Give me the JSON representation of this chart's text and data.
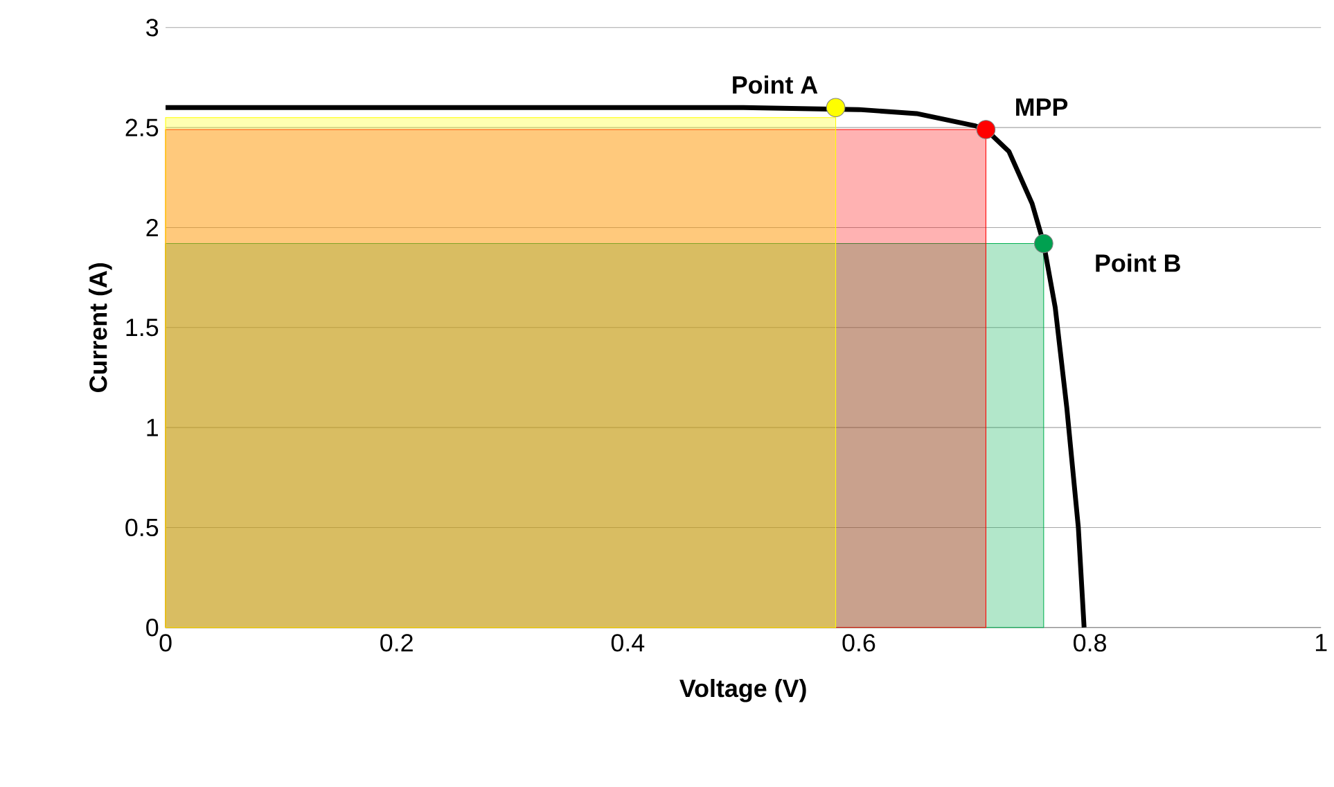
{
  "chart_data": {
    "type": "line",
    "xlabel": "Voltage (V)",
    "ylabel": "Current (A)",
    "xlim": [
      0,
      1
    ],
    "ylim": [
      0,
      3
    ],
    "xticks": [
      0,
      0.2,
      0.4,
      0.6,
      0.8,
      1
    ],
    "yticks": [
      0,
      0.5,
      1,
      1.5,
      2,
      2.5,
      3
    ],
    "grid": "y",
    "series": [
      {
        "type": "area",
        "color": "#00b050",
        "x": [
          0,
          0.76
        ],
        "values": [
          1.92,
          1.92
        ]
      },
      {
        "type": "area",
        "color": "#ff0000",
        "x": [
          0,
          0.71
        ],
        "values": [
          2.49,
          2.49
        ]
      },
      {
        "type": "area",
        "color": "#ffff00",
        "x": [
          0,
          0.58
        ],
        "values": [
          2.55,
          2.55
        ]
      },
      {
        "color": "#000000",
        "x": [
          0,
          0.1,
          0.2,
          0.3,
          0.4,
          0.5,
          0.6,
          0.65,
          0.7,
          0.71,
          0.73,
          0.75,
          0.76,
          0.77,
          0.78,
          0.79,
          0.795
        ],
        "values": [
          2.6,
          2.6,
          2.6,
          2.6,
          2.6,
          2.6,
          2.59,
          2.57,
          2.51,
          2.49,
          2.38,
          2.12,
          1.92,
          1.6,
          1.1,
          0.5,
          0
        ]
      },
      {
        "type": "scatter",
        "color": "#ffff00",
        "x": [
          0.58
        ],
        "values": [
          2.6
        ]
      },
      {
        "type": "scatter",
        "color": "#ff0000",
        "x": [
          0.71
        ],
        "values": [
          2.49
        ]
      },
      {
        "type": "scatter",
        "color": "#00a050",
        "x": [
          0.76
        ],
        "values": [
          1.92
        ]
      }
    ],
    "annotations": [
      {
        "text": "Point A",
        "x": 0.58,
        "y": 2.6
      },
      {
        "text": "MPP",
        "x": 0.71,
        "y": 2.49
      },
      {
        "text": "Point B",
        "x": 0.76,
        "y": 1.92
      }
    ]
  }
}
